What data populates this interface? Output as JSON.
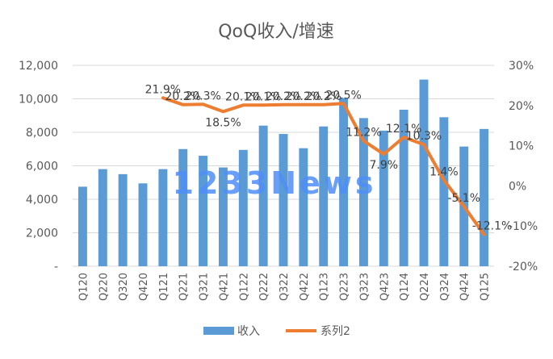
{
  "chart_data": {
    "type": "bar+line",
    "title": "QoQ收入/增速",
    "categories": [
      "Q120",
      "Q220",
      "Q320",
      "Q420",
      "Q121",
      "Q221",
      "Q321",
      "Q421",
      "Q122",
      "Q222",
      "Q322",
      "Q422",
      "Q123",
      "Q223",
      "Q323",
      "Q423",
      "Q124",
      "Q224",
      "Q324",
      "Q424",
      "Q125"
    ],
    "series": [
      {
        "name": "收入",
        "type": "bar",
        "axis": "left",
        "color": "#5b9bd5",
        "values": [
          4750,
          5800,
          5500,
          4950,
          5800,
          7000,
          6600,
          5900,
          6950,
          8400,
          7900,
          7050,
          8350,
          10050,
          8850,
          8100,
          9350,
          11150,
          8900,
          7150,
          8200
        ]
      },
      {
        "name": "系列2",
        "type": "line",
        "axis": "right",
        "color": "#ed7d31",
        "values": [
          null,
          null,
          null,
          null,
          21.9,
          20.2,
          20.3,
          18.5,
          20.1,
          20.1,
          20.2,
          20.2,
          20.2,
          20.5,
          11.2,
          7.9,
          12.1,
          10.3,
          1.4,
          -5.1,
          -12.1
        ],
        "labels": [
          "",
          "",
          "",
          "",
          "21.9%",
          "20.2%",
          "20.3%",
          "18.5%",
          "20.1%",
          "20.1%",
          "20.2%",
          "20.2%",
          "20.2%",
          "20.5%",
          "11.2%",
          "7.9%",
          "12.1%",
          "10.3%",
          "1.4%",
          "-5.1%",
          "-12.1%"
        ]
      }
    ],
    "y_left": {
      "min": 0,
      "max": 12000,
      "ticks": [
        0,
        2000,
        4000,
        6000,
        8000,
        10000,
        12000
      ],
      "tick_labels": [
        "-",
        "2,000",
        "4,000",
        "6,000",
        "8,000",
        "10,000",
        "12,000"
      ]
    },
    "y_right": {
      "min": -20,
      "max": 30,
      "ticks": [
        -20,
        -10,
        0,
        10,
        20,
        30
      ],
      "tick_labels": [
        "-20%",
        "-10%",
        "0%",
        "10%",
        "20%",
        "30%"
      ]
    },
    "gridlines": true,
    "legend": {
      "position": "bottom",
      "items": [
        "收入",
        "系列2"
      ]
    },
    "watermark": "1233News"
  }
}
